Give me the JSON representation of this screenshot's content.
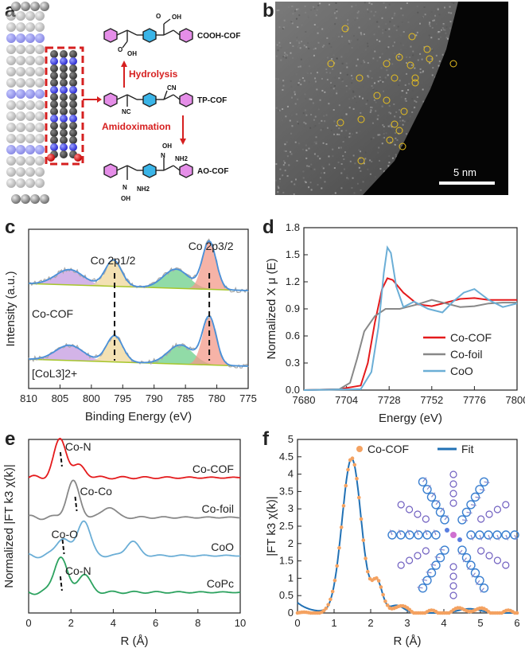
{
  "panels": {
    "a": "a",
    "b": "b",
    "c": "c",
    "d": "d",
    "e": "e",
    "f": "f"
  },
  "panel_a": {
    "labels": [
      "COOH-COF",
      "TP-COF",
      "AO-COF"
    ],
    "arrow_labels": [
      "Hydrolysis",
      "Amidoximation"
    ],
    "group_labels": [
      "OH",
      "O",
      "OH",
      "O",
      "CN",
      "NC",
      "OH",
      "N",
      "NH2",
      "NH2",
      "N",
      "OH"
    ]
  },
  "panel_b": {
    "scalebar": "5 nm",
    "colors": {
      "circle": "#e8c020",
      "scalebar": "#ffffff"
    }
  },
  "chart_data": [
    {
      "id": "c",
      "type": "line",
      "xlabel": "Binding Energy (eV)",
      "ylabel": "Intensity (a.u.)",
      "xlim": [
        810,
        775
      ],
      "xticks": [
        810,
        805,
        800,
        795,
        790,
        785,
        780,
        775
      ],
      "peak_labels": [
        "Co 2p1/2",
        "Co 2p3/2"
      ],
      "peak_positions": [
        796.3,
        781.2
      ],
      "series": [
        {
          "name": "Co-COF",
          "peaks": [
            803.5,
            796.5,
            786.5,
            781.2
          ]
        },
        {
          "name": "[CoL3]2+",
          "peaks": [
            803.5,
            796.3,
            785.8,
            781.2
          ]
        }
      ]
    },
    {
      "id": "d",
      "type": "line",
      "xlabel": "Energy (eV)",
      "ylabel": "Normalized X μ (E)",
      "xlim": [
        7680,
        7800
      ],
      "ylim": [
        0,
        1.8
      ],
      "xticks": [
        7680,
        7704,
        7728,
        7752,
        7776,
        7800
      ],
      "yticks": [
        0.0,
        0.3,
        0.6,
        0.9,
        1.2,
        1.5,
        1.8
      ],
      "legend_position": "lower-right",
      "series": [
        {
          "name": "Co-COF",
          "color": "#e41a1c",
          "x": [
            7680,
            7700,
            7712,
            7716,
            7720,
            7724,
            7727,
            7730,
            7736,
            7744,
            7752,
            7760,
            7768,
            7776,
            7784,
            7792,
            7800
          ],
          "y": [
            0.0,
            0.01,
            0.05,
            0.3,
            0.75,
            1.12,
            1.24,
            1.22,
            1.08,
            0.95,
            0.93,
            0.97,
            1.01,
            1.02,
            1.0,
            1.0,
            1.0
          ]
        },
        {
          "name": "Co-foil",
          "color": "#888888",
          "x": [
            7680,
            7700,
            7706,
            7710,
            7714,
            7720,
            7726,
            7734,
            7744,
            7752,
            7760,
            7768,
            7776,
            7784,
            7792,
            7800
          ],
          "y": [
            0.0,
            0.01,
            0.08,
            0.35,
            0.65,
            0.82,
            0.9,
            0.9,
            0.95,
            1.0,
            0.96,
            0.92,
            0.93,
            0.96,
            0.97,
            0.97
          ]
        },
        {
          "name": "CoO",
          "color": "#6baed6",
          "x": [
            7680,
            7712,
            7718,
            7722,
            7725,
            7727,
            7729,
            7732,
            7736,
            7742,
            7750,
            7758,
            7764,
            7770,
            7776,
            7784,
            7792,
            7800
          ],
          "y": [
            0.0,
            0.01,
            0.2,
            0.7,
            1.3,
            1.58,
            1.52,
            1.15,
            0.92,
            0.98,
            0.9,
            0.86,
            0.98,
            1.08,
            1.12,
            1.0,
            0.92,
            0.96
          ]
        }
      ]
    },
    {
      "id": "e",
      "type": "line",
      "xlabel": "R (Å)",
      "ylabel": "Normalized |FT k3 χ(k)|",
      "xlim": [
        0,
        10
      ],
      "xticks": [
        0,
        2,
        4,
        6,
        8,
        10
      ],
      "annotations": [
        "Co-N",
        "Co-Co",
        "Co-O",
        "Co-N"
      ],
      "series": [
        {
          "name": "Co-COF",
          "color": "#e41a1c",
          "peaks": [
            [
              1.5,
              1.0
            ],
            [
              2.4,
              0.3
            ]
          ]
        },
        {
          "name": "Co-foil",
          "color": "#888888",
          "peaks": [
            [
              2.1,
              1.0
            ],
            [
              3.8,
              0.3
            ]
          ]
        },
        {
          "name": "CoO",
          "color": "#6baed6",
          "peaks": [
            [
              1.6,
              0.5
            ],
            [
              2.6,
              1.0
            ],
            [
              4.9,
              0.4
            ]
          ]
        },
        {
          "name": "CoPc",
          "color": "#2ca25f",
          "peaks": [
            [
              1.5,
              1.0
            ],
            [
              2.6,
              0.5
            ]
          ]
        }
      ]
    },
    {
      "id": "f",
      "type": "line",
      "xlabel": "R (Å)",
      "ylabel": "|FT k3 χ(k)|",
      "xlim": [
        0,
        6
      ],
      "ylim": [
        0,
        5
      ],
      "xticks": [
        0,
        1,
        2,
        3,
        4,
        5,
        6
      ],
      "yticks": [
        0,
        0.5,
        1,
        1.5,
        2,
        2.5,
        3,
        3.5,
        4,
        4.5,
        5
      ],
      "legend_position": "top",
      "series": [
        {
          "name": "Co-COF",
          "color": "#f4a261",
          "style": "points"
        },
        {
          "name": "Fit",
          "color": "#2171b5",
          "style": "line"
        }
      ]
    }
  ]
}
